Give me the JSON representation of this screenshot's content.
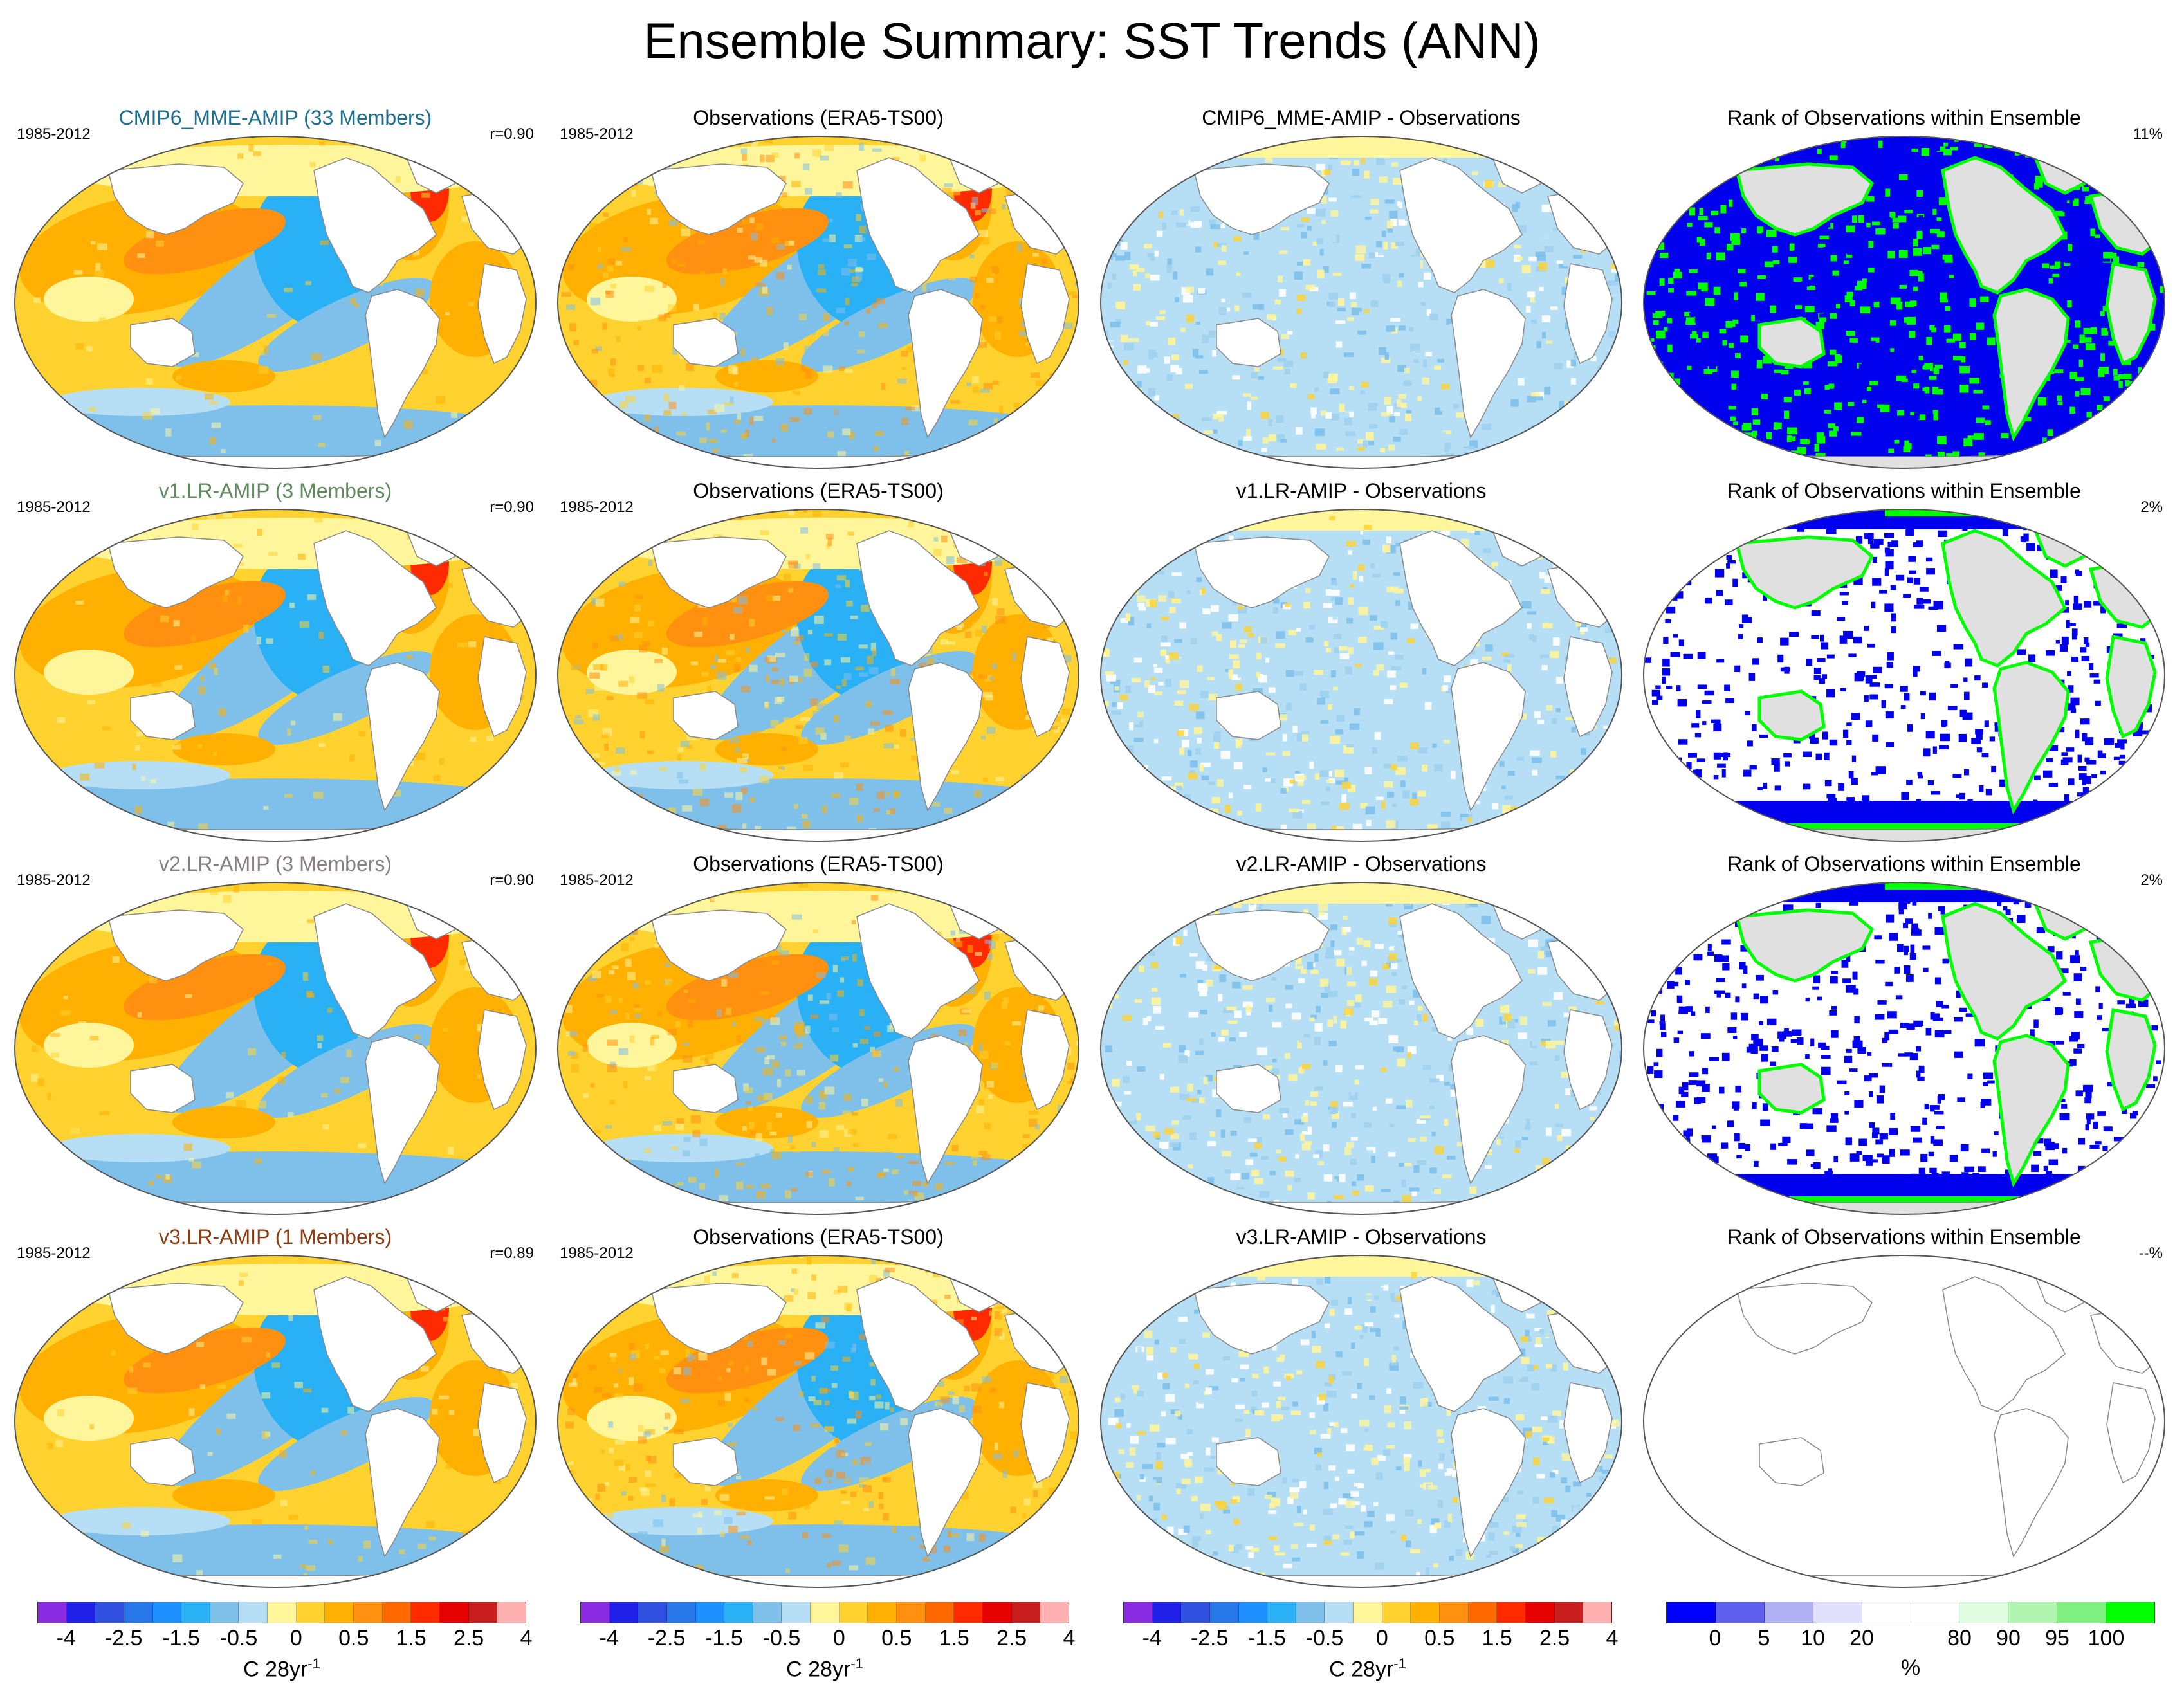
{
  "title": "Ensemble Summary: SST Trends (ANN)",
  "period": "1985-2012",
  "obs_title": "Observations (ERA5-TS00)",
  "rank_title": "Rank of Observations within Ensemble",
  "rows": [
    {
      "model": "CMIP6_MME-AMIP (33 Members)",
      "model_color": "#1f6f8f",
      "r": "r=0.90",
      "diff_title": "CMIP6_MME-AMIP - Observations",
      "rank_pct": "11%",
      "rank_style": "mme"
    },
    {
      "model": "v1.LR-AMIP (3 Members)",
      "model_color": "#5e8a5e",
      "r": "r=0.90",
      "diff_title": "v1.LR-AMIP - Observations",
      "rank_pct": "2%",
      "rank_style": "few"
    },
    {
      "model": "v2.LR-AMIP (3 Members)",
      "model_color": "#8a7f80",
      "r": "r=0.90",
      "diff_title": "v2.LR-AMIP - Observations",
      "rank_pct": "2%",
      "rank_style": "few"
    },
    {
      "model": "v3.LR-AMIP (1 Members)",
      "model_color": "#8a3c12",
      "r": "r=0.89",
      "diff_title": "v3.LR-AMIP - Observations",
      "rank_pct": "--%",
      "rank_style": "empty"
    }
  ],
  "colorbar_trend": {
    "colors": [
      "#8a2be2",
      "#2020e8",
      "#3050e0",
      "#2878ea",
      "#1e90ff",
      "#2ab0f5",
      "#7ec0ea",
      "#b6dff5",
      "#fff59a",
      "#ffd230",
      "#ffb000",
      "#ff9010",
      "#ff6a00",
      "#ff2a00",
      "#e60000",
      "#c81e1e",
      "#ffb0b0"
    ],
    "ticks": [
      "-4",
      "-2.5",
      "-1.5",
      "-0.5",
      "0",
      "0.5",
      "1.5",
      "2.5",
      "4"
    ],
    "tick_positions": [
      1,
      3,
      5,
      7,
      9,
      11,
      13,
      15,
      17
    ],
    "label": "C 28yr",
    "label_sup": "-1"
  },
  "colorbar_rank": {
    "colors": [
      "#0000ff",
      "#6060f0",
      "#b0b0f5",
      "#e0e0fc",
      "#ffffff",
      "#ffffff",
      "#e0fce0",
      "#b0f5b0",
      "#80f080",
      "#00ff00"
    ],
    "ticks": [
      "0",
      "5",
      "10",
      "20",
      "80",
      "90",
      "95",
      "100"
    ],
    "tick_positions": [
      1,
      2,
      3,
      4,
      6,
      7,
      8,
      9
    ],
    "label": "%"
  },
  "colors": {
    "ocean_white": "#ffffff",
    "land_gray": "#e0e0e0",
    "coast": "#888888",
    "rank_blue": "#0000ee",
    "rank_green": "#00ff00"
  }
}
